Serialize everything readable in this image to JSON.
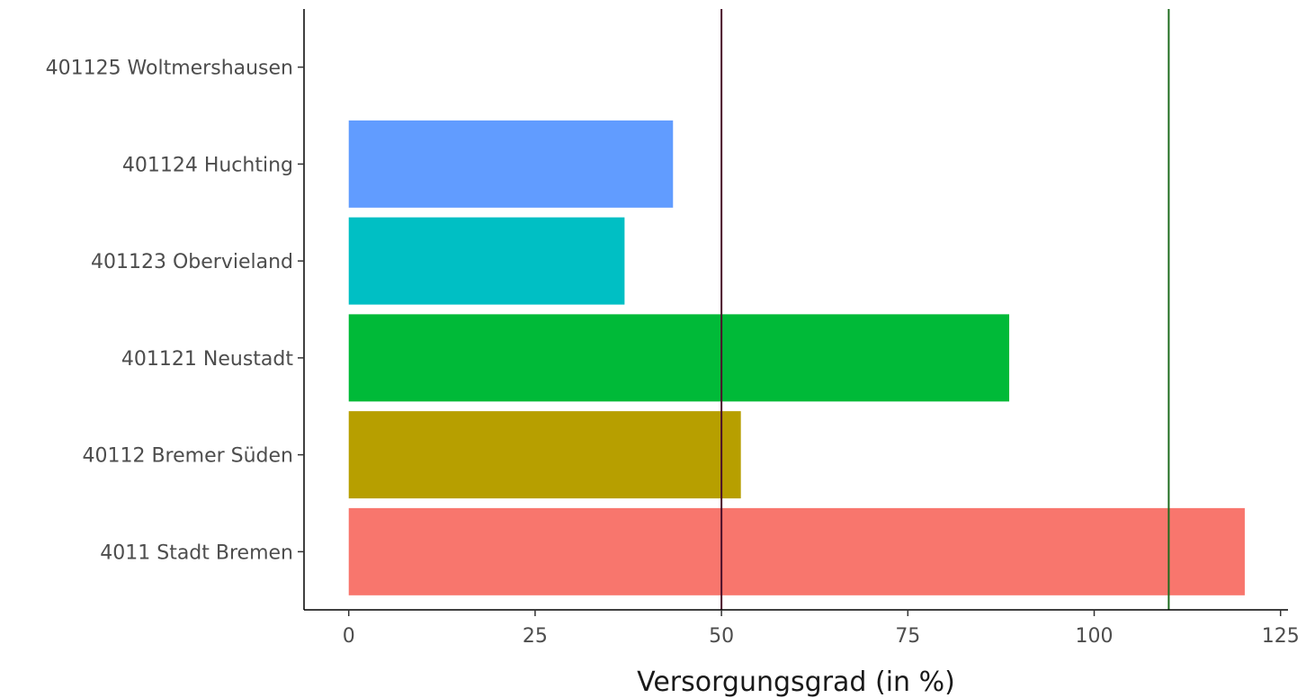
{
  "chart_data": {
    "type": "bar",
    "orientation": "horizontal",
    "title": "",
    "xlabel": "Versorgungsgrad (in %)",
    "ylabel": "",
    "xlim": [
      -6,
      126
    ],
    "x_ticks": [
      0,
      25,
      50,
      75,
      100,
      125
    ],
    "categories": [
      "4011 Stadt Bremen",
      "40112 Bremer Süden",
      "401121 Neustadt",
      "401123 Obervieland",
      "401124 Huchting",
      "401125 Woltmershausen"
    ],
    "values": [
      120.2,
      52.6,
      88.6,
      37,
      43.5,
      0
    ],
    "bar_colors": [
      "#F8766D",
      "#B79F00",
      "#00BA38",
      "#00BFC4",
      "#619CFF",
      "#F564E3"
    ],
    "reference_lines": [
      {
        "x": 50,
        "color": "#4a0f2a"
      },
      {
        "x": 110,
        "color": "#1e6b1e"
      }
    ],
    "grid": false,
    "legend": "none"
  }
}
